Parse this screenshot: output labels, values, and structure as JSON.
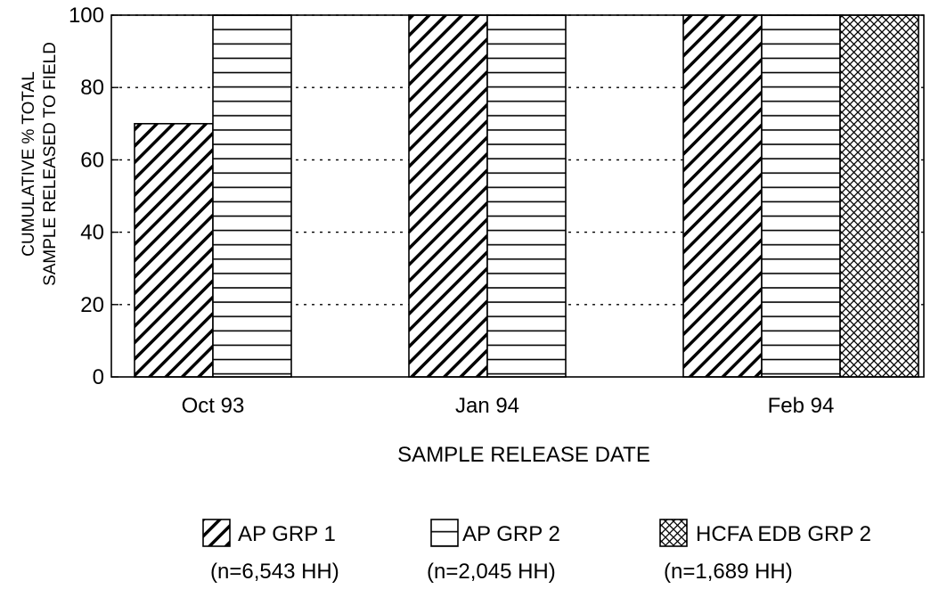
{
  "chart_data": {
    "type": "bar",
    "categories": [
      "Oct 93",
      "Jan 94",
      "Feb 94"
    ],
    "series": [
      {
        "name": "AP GRP 1",
        "note": "(n=6,543 HH)",
        "pattern": "diagonal-hatch",
        "values": [
          70,
          100,
          100
        ]
      },
      {
        "name": "AP GRP 2",
        "note": "(n=2,045 HH)",
        "pattern": "horizontal-lines",
        "values": [
          100,
          100,
          100
        ]
      },
      {
        "name": "HCFA EDB GRP 2",
        "note": "(n=1,689 HH)",
        "pattern": "crosshatch",
        "values": [
          null,
          null,
          100
        ]
      }
    ],
    "title": "",
    "xlabel": "SAMPLE RELEASE DATE",
    "ylabel": [
      "CUMULATIVE % TOTAL",
      "SAMPLE RELEASED TO FIELD"
    ],
    "ylim": [
      0,
      100
    ],
    "yticks": [
      0,
      20,
      40,
      60,
      80,
      100
    ],
    "grid": "dotted horizontal",
    "legend_position": "bottom"
  }
}
